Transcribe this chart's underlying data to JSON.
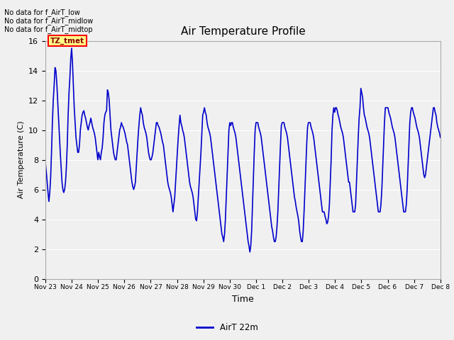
{
  "title": "Air Temperature Profile",
  "xlabel": "Time",
  "ylabel": "Air Temperature (C)",
  "ylim": [
    0,
    16
  ],
  "yticks": [
    0,
    2,
    4,
    6,
    8,
    10,
    12,
    14,
    16
  ],
  "line_color": "#0000cc",
  "line_width": 1.2,
  "legend_label": "AirT 22m",
  "bg_color": "#f0f0f0",
  "plot_bg_color": "#f0f0f0",
  "no_data_texts": [
    "No data for f_AirT_low",
    "No data for f_AirT_midlow",
    "No data for f_AirT_midtop"
  ],
  "tz_label": "TZ_tmet",
  "x_tick_labels": [
    "Nov 23",
    "Nov 24",
    "Nov 25",
    "Nov 26",
    "Nov 27",
    "Nov 28",
    "Nov 29",
    "Nov 30",
    "Dec 1",
    "Dec 2",
    "Dec 3",
    "Dec 4",
    "Dec 5",
    "Dec 6",
    "Dec 7",
    "Dec 8"
  ],
  "temp_values": [
    7.8,
    7.2,
    6.5,
    5.8,
    5.2,
    5.8,
    6.8,
    8.5,
    10.5,
    12.0,
    13.0,
    14.2,
    14.0,
    13.2,
    12.0,
    10.8,
    9.5,
    8.5,
    7.5,
    6.5,
    6.0,
    5.8,
    6.0,
    6.5,
    7.5,
    9.0,
    11.0,
    12.5,
    13.5,
    14.8,
    15.5,
    14.5,
    13.0,
    11.5,
    10.5,
    9.5,
    9.0,
    8.5,
    8.5,
    9.0,
    10.0,
    10.5,
    11.0,
    11.2,
    11.3,
    11.0,
    10.8,
    10.5,
    10.2,
    10.0,
    10.3,
    10.5,
    10.8,
    10.5,
    10.2,
    10.0,
    9.8,
    9.5,
    9.0,
    8.5,
    8.0,
    8.5,
    8.2,
    8.0,
    8.5,
    8.8,
    9.5,
    10.5,
    11.0,
    11.2,
    11.3,
    12.7,
    12.5,
    12.0,
    11.0,
    10.0,
    9.5,
    9.0,
    8.5,
    8.2,
    8.0,
    8.0,
    8.5,
    9.0,
    9.5,
    10.0,
    10.2,
    10.5,
    10.3,
    10.2,
    10.0,
    9.8,
    9.5,
    9.2,
    9.0,
    8.5,
    8.0,
    7.5,
    7.0,
    6.5,
    6.2,
    6.0,
    6.2,
    6.5,
    7.5,
    8.5,
    9.5,
    10.3,
    11.0,
    11.5,
    11.2,
    11.0,
    10.5,
    10.2,
    10.0,
    9.8,
    9.5,
    9.0,
    8.5,
    8.2,
    8.0,
    8.0,
    8.2,
    8.5,
    9.0,
    9.5,
    10.0,
    10.5,
    10.5,
    10.3,
    10.2,
    10.0,
    9.8,
    9.5,
    9.2,
    9.0,
    8.5,
    8.0,
    7.5,
    7.0,
    6.5,
    6.2,
    6.0,
    5.8,
    5.5,
    5.0,
    4.5,
    5.0,
    5.5,
    6.5,
    7.5,
    8.5,
    9.5,
    10.3,
    11.0,
    10.5,
    10.3,
    10.0,
    9.8,
    9.5,
    9.0,
    8.5,
    8.0,
    7.5,
    7.0,
    6.5,
    6.2,
    6.0,
    5.8,
    5.5,
    5.0,
    4.5,
    4.0,
    3.9,
    4.5,
    5.5,
    6.5,
    7.5,
    8.5,
    9.8,
    11.0,
    11.2,
    11.5,
    11.2,
    11.0,
    10.5,
    10.2,
    10.0,
    9.8,
    9.5,
    9.0,
    8.5,
    8.0,
    7.5,
    7.0,
    6.5,
    6.0,
    5.5,
    5.0,
    4.5,
    4.0,
    3.5,
    3.0,
    2.8,
    2.5,
    3.0,
    4.0,
    5.5,
    7.0,
    8.5,
    10.0,
    10.5,
    10.3,
    10.5,
    10.5,
    10.2,
    10.0,
    9.8,
    9.5,
    9.0,
    8.5,
    8.0,
    7.5,
    7.0,
    6.5,
    6.0,
    5.5,
    5.0,
    4.5,
    4.0,
    3.5,
    3.0,
    2.5,
    2.2,
    1.8,
    2.2,
    3.2,
    5.0,
    6.8,
    8.5,
    10.0,
    10.5,
    10.5,
    10.5,
    10.2,
    10.0,
    9.8,
    9.5,
    9.0,
    8.5,
    8.0,
    7.5,
    7.0,
    6.5,
    6.0,
    5.5,
    5.0,
    4.5,
    4.0,
    3.5,
    3.2,
    2.8,
    2.5,
    2.5,
    2.8,
    3.5,
    4.5,
    6.0,
    7.5,
    9.0,
    10.3,
    10.5,
    10.5,
    10.5,
    10.2,
    10.0,
    9.8,
    9.5,
    9.0,
    8.5,
    8.0,
    7.5,
    7.0,
    6.5,
    6.0,
    5.5,
    5.2,
    4.8,
    4.5,
    4.2,
    3.8,
    3.2,
    2.8,
    2.5,
    2.5,
    3.2,
    4.5,
    6.0,
    7.5,
    9.0,
    10.2,
    10.5,
    10.5,
    10.5,
    10.2,
    10.0,
    9.8,
    9.5,
    9.0,
    8.5,
    8.0,
    7.5,
    7.0,
    6.5,
    6.0,
    5.5,
    5.0,
    4.5,
    4.5,
    4.5,
    4.2,
    4.0,
    3.7,
    3.8,
    4.2,
    5.0,
    6.5,
    8.0,
    10.0,
    11.0,
    11.5,
    11.2,
    11.5,
    11.5,
    11.3,
    11.0,
    10.8,
    10.5,
    10.2,
    10.0,
    9.8,
    9.5,
    9.0,
    8.5,
    8.0,
    7.5,
    7.0,
    6.5,
    6.5,
    6.0,
    5.5,
    5.0,
    4.5,
    4.5,
    4.5,
    5.0,
    6.5,
    8.0,
    9.5,
    10.8,
    11.5,
    12.8,
    12.5,
    12.2,
    11.5,
    11.0,
    10.8,
    10.5,
    10.2,
    10.0,
    9.8,
    9.5,
    9.0,
    8.5,
    8.0,
    7.5,
    7.0,
    6.5,
    6.0,
    5.5,
    5.0,
    4.5,
    4.5,
    4.5,
    5.0,
    6.0,
    7.5,
    9.0,
    10.5,
    11.5,
    11.5,
    11.5,
    11.5,
    11.2,
    11.0,
    10.8,
    10.5,
    10.2,
    10.0,
    9.8,
    9.5,
    9.0,
    8.5,
    8.0,
    7.5,
    7.0,
    6.5,
    6.0,
    5.5,
    5.0,
    4.5,
    4.5,
    4.5,
    5.0,
    6.0,
    7.5,
    9.0,
    10.5,
    11.2,
    11.5,
    11.5,
    11.2,
    11.0,
    10.8,
    10.5,
    10.2,
    10.0,
    9.8,
    9.5,
    9.0,
    8.5,
    8.0,
    7.5,
    7.0,
    6.8,
    7.0,
    7.5,
    8.0,
    8.5,
    9.0,
    9.5,
    10.0,
    10.5,
    11.0,
    11.5,
    11.5,
    11.2,
    11.0,
    10.5,
    10.2,
    10.0,
    9.8,
    9.5
  ]
}
